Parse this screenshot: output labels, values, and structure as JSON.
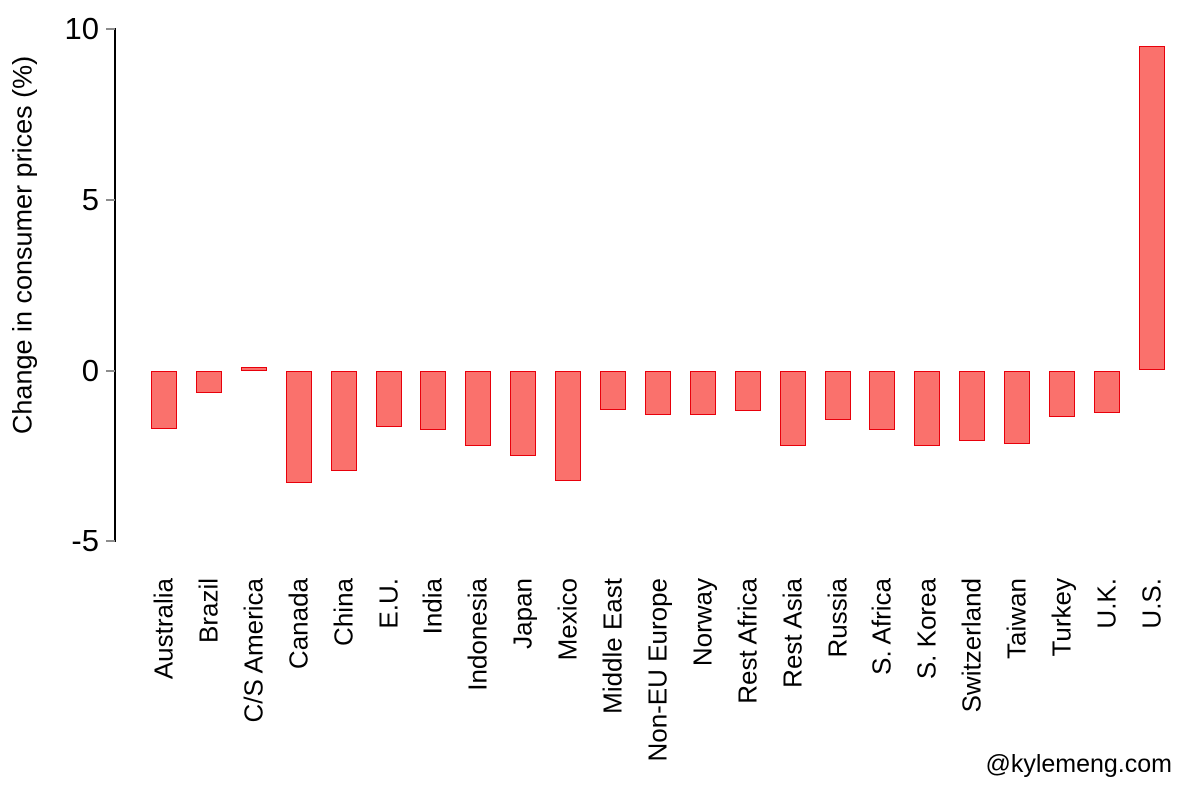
{
  "chart_data": {
    "type": "bar",
    "title": "",
    "xlabel": "",
    "ylabel": "Change in consumer prices (%)",
    "categories": [
      "Australia",
      "Brazil",
      "C/S America",
      "Canada",
      "China",
      "E.U.",
      "India",
      "Indonesia",
      "Japan",
      "Mexico",
      "Middle East",
      "Non-EU Europe",
      "Norway",
      "Rest Africa",
      "Rest Asia",
      "Russia",
      "S. Africa",
      "S. Korea",
      "Switzerland",
      "Taiwan",
      "Turkey",
      "U.K.",
      "U.S."
    ],
    "values": [
      -1.7,
      -0.65,
      0.1,
      -3.3,
      -2.95,
      -1.65,
      -1.75,
      -2.2,
      -2.5,
      -3.25,
      -1.15,
      -1.3,
      -1.3,
      -1.2,
      -2.2,
      -1.45,
      -1.75,
      -2.2,
      -2.05,
      -2.15,
      -1.35,
      -1.25,
      9.5
    ],
    "yticks": [
      10,
      5,
      0,
      -5
    ],
    "ylim": [
      -5,
      10
    ],
    "grid": false,
    "legend": false,
    "bar_fill_color": "#fa716c",
    "bar_border_color": "#e8000b",
    "axis_line_color": "#000000",
    "tick_color": "#8c8c8c",
    "baseline_color": "#a9a9a9"
  },
  "watermark": "@kylemeng.com"
}
